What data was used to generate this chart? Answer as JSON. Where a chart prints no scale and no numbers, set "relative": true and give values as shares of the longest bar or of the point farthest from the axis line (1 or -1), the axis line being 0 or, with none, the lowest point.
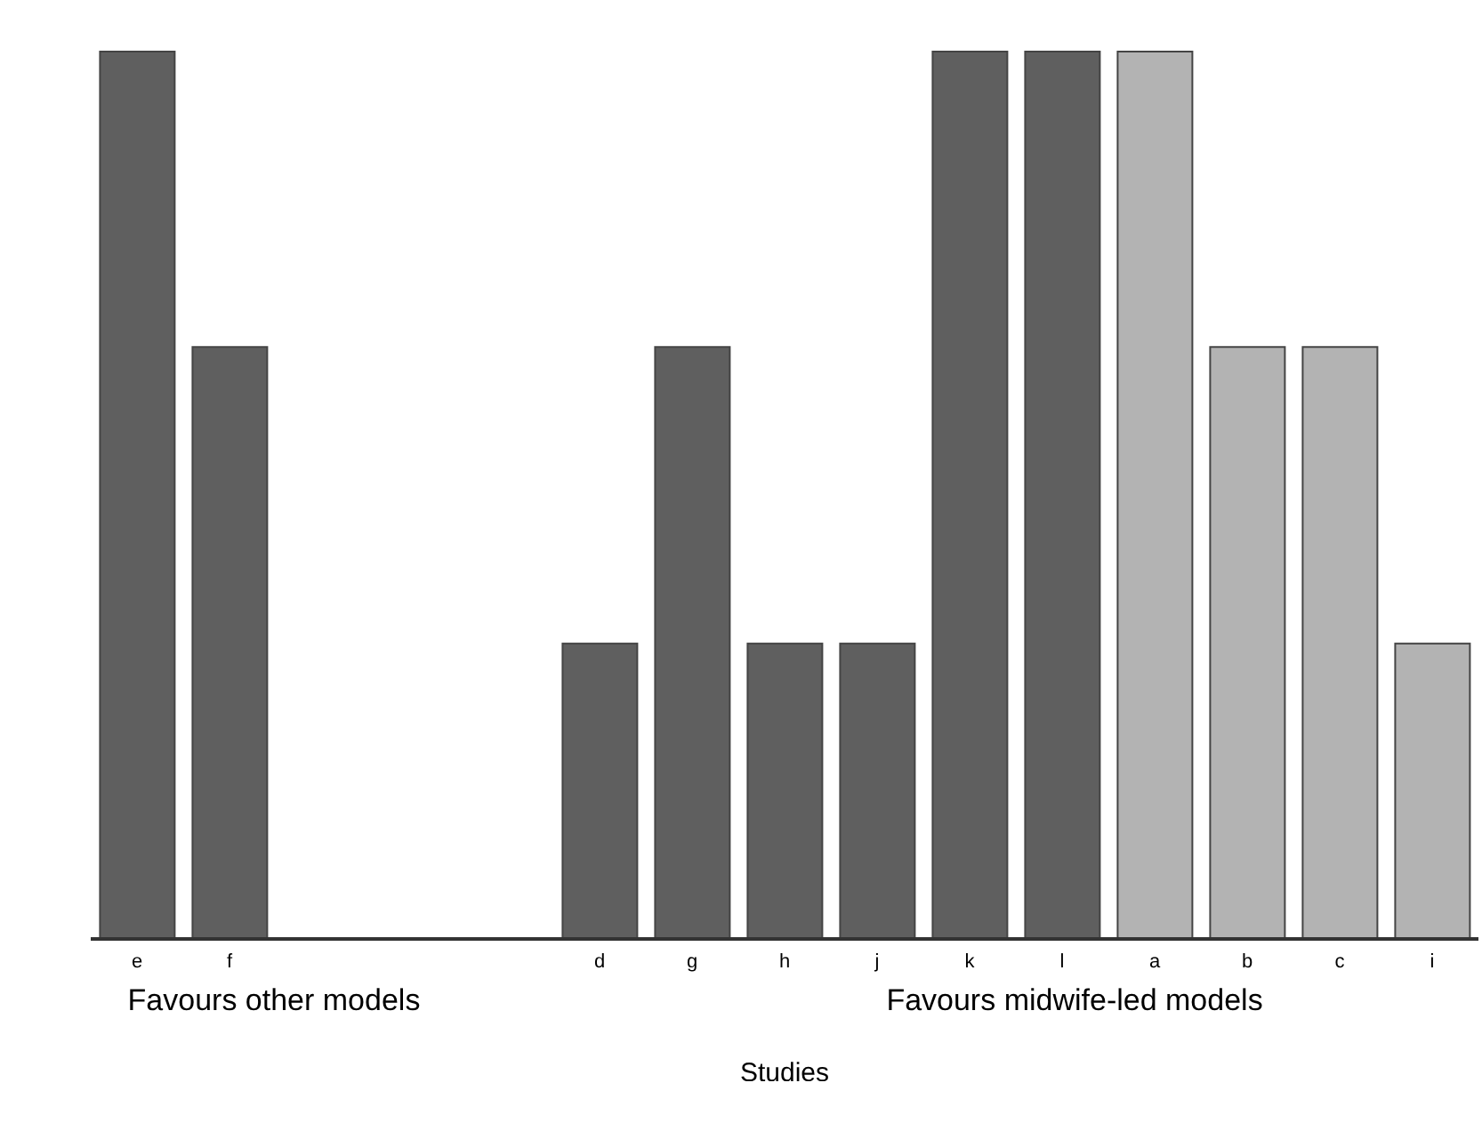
{
  "chart_data": {
    "type": "bar",
    "relative": true,
    "xlabel": "Studies",
    "categories": [
      "e",
      "f",
      null,
      null,
      null,
      "d",
      "g",
      "h",
      "j",
      "k",
      "l",
      "a",
      "b",
      "c",
      "i"
    ],
    "values": [
      1,
      0.667,
      null,
      null,
      null,
      0.333,
      0.667,
      0.333,
      0.333,
      1,
      1,
      1,
      0.667,
      0.667,
      0.333
    ],
    "colors": [
      "#5f5f5f",
      "#5f5f5f",
      "#5f5f5f",
      "#5f5f5f",
      "#5f5f5f",
      "#5f5f5f",
      "#5f5f5f",
      "#5f5f5f",
      "#5f5f5f",
      "#5f5f5f",
      "#5f5f5f",
      "#b3b3b3",
      "#b3b3b3",
      "#b3b3b3",
      "#b3b3b3"
    ],
    "annotations": [
      "Favours other models",
      "Favours midwife-led models"
    ],
    "grid": false,
    "legend": false
  }
}
